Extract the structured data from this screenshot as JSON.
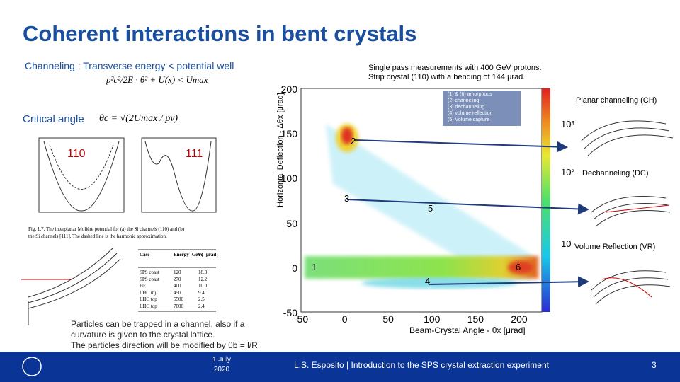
{
  "header": {
    "title": "Coherent interactions in bent crystals"
  },
  "left": {
    "channeling": "Channeling : Transverse energy < potential well",
    "channeling_formula": "p²c²/2E · θ² + U(x) < Umax",
    "critical_angle": "Critical angle",
    "critical_formula": "θc = √(2Umax / pv)",
    "potential_labels": [
      "110",
      "111"
    ],
    "caption": [
      "Fig. 1.7. The interplanar Molière potential for (a) the Si channels (110) and (b)",
      "the Si channels [111]. The dashed line is the harmonic approximation."
    ],
    "table": {
      "header": [
        "Case",
        "Energy [GeV]",
        "θc [μrad]"
      ],
      "rows": [
        [
          "SPS coast",
          "120",
          "18.3"
        ],
        [
          "SPS coast",
          "270",
          "12.2"
        ],
        [
          "HE",
          "400",
          "10.0"
        ],
        [
          "LHC inj.",
          "450",
          "9.4"
        ],
        [
          "LHC top",
          "5500",
          "2.5"
        ],
        [
          "LHC top",
          "7000",
          "2.4"
        ]
      ]
    },
    "note": [
      "Particles can be trapped in a channel, also if a",
      "curvature is given to the crystal lattice.",
      "The particles direction will be modified by θb = l/R"
    ]
  },
  "right": {
    "description": [
      "Single pass measurements with 400 GeV protons.",
      "Strip crystal (110) with a bending of 144 μrad."
    ],
    "plot": {
      "y_label": "Horizontal Deflection - Δθx [μrad]",
      "x_label": "Beam-Crystal Angle - θx [μrad]",
      "yticks": [
        "200",
        "150",
        "100",
        "50",
        "0",
        "-50"
      ],
      "xticks": [
        "-50",
        "0",
        "50",
        "100",
        "150",
        "200"
      ],
      "colorbar_ticks": [
        "10³",
        "10²",
        "10"
      ],
      "legend": [
        "(1) & (6) amorphous",
        "(2) channeling",
        "(3) dechanneling",
        "(4) volume reflection",
        "(5) Volume capture"
      ],
      "regions": [
        "1",
        "2",
        "3",
        "4",
        "5",
        "6"
      ]
    },
    "labels": [
      "Planar channeling (CH)",
      "Dechanneling (DC)",
      "Volume Reflection (VR)"
    ]
  },
  "footer": {
    "date": [
      "1 July",
      "2020"
    ],
    "credit": "L.S. Esposito | Introduction to the SPS crystal extraction experiment",
    "page": "3"
  }
}
